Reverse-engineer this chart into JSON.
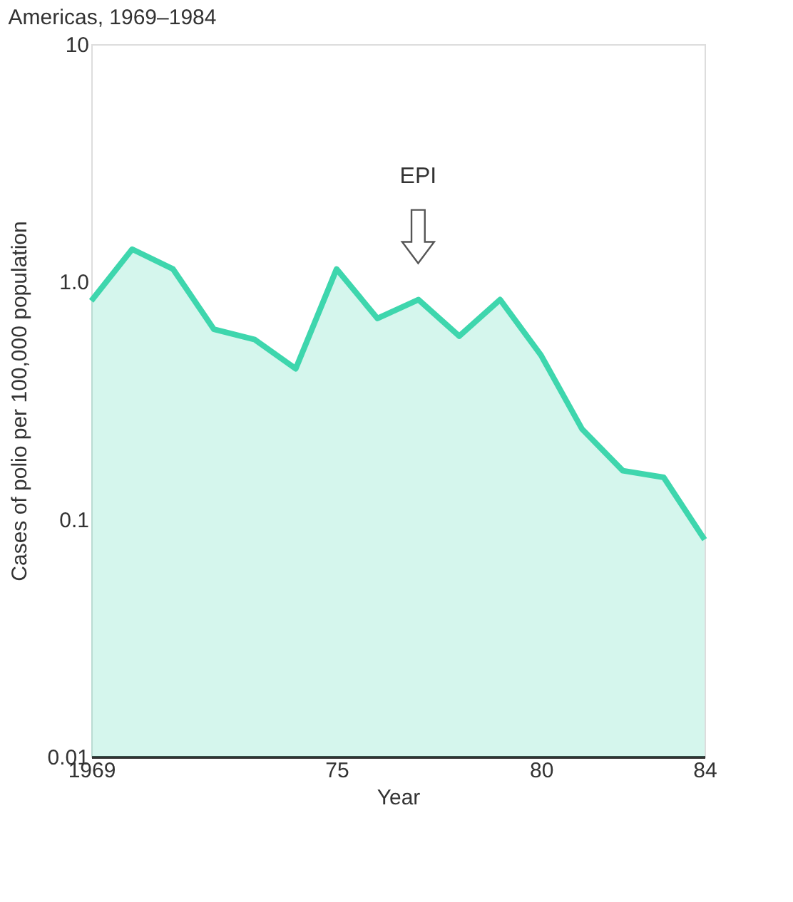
{
  "chart_data": {
    "type": "area",
    "title": "Americas, 1969–1984",
    "xlabel": "Year",
    "ylabel": "Cases of polio per 100,000 population",
    "x": [
      1969,
      1970,
      1971,
      1972,
      1973,
      1974,
      1975,
      1976,
      1977,
      1978,
      1979,
      1980,
      1981,
      1982,
      1983,
      1984
    ],
    "series": [
      {
        "color": "#3ed6ad",
        "values": [
          0.83,
          1.37,
          1.13,
          0.63,
          0.57,
          0.43,
          1.13,
          0.7,
          0.84,
          0.59,
          0.84,
          0.49,
          0.24,
          0.16,
          0.15,
          0.082
        ]
      }
    ],
    "log": "y",
    "xlim": [
      1969,
      1984
    ],
    "ylim": [
      0.01,
      10
    ],
    "xticks": [
      1969,
      {
        "value": 1975,
        "label": "75"
      },
      {
        "value": 1980,
        "label": "80"
      },
      {
        "value": 1984,
        "label": "84"
      }
    ],
    "yticks": [
      0.01,
      0.1,
      {
        "value": 1,
        "label": "1.0"
      },
      10
    ],
    "annotations": [
      "EPI"
    ],
    "grid": false
  }
}
